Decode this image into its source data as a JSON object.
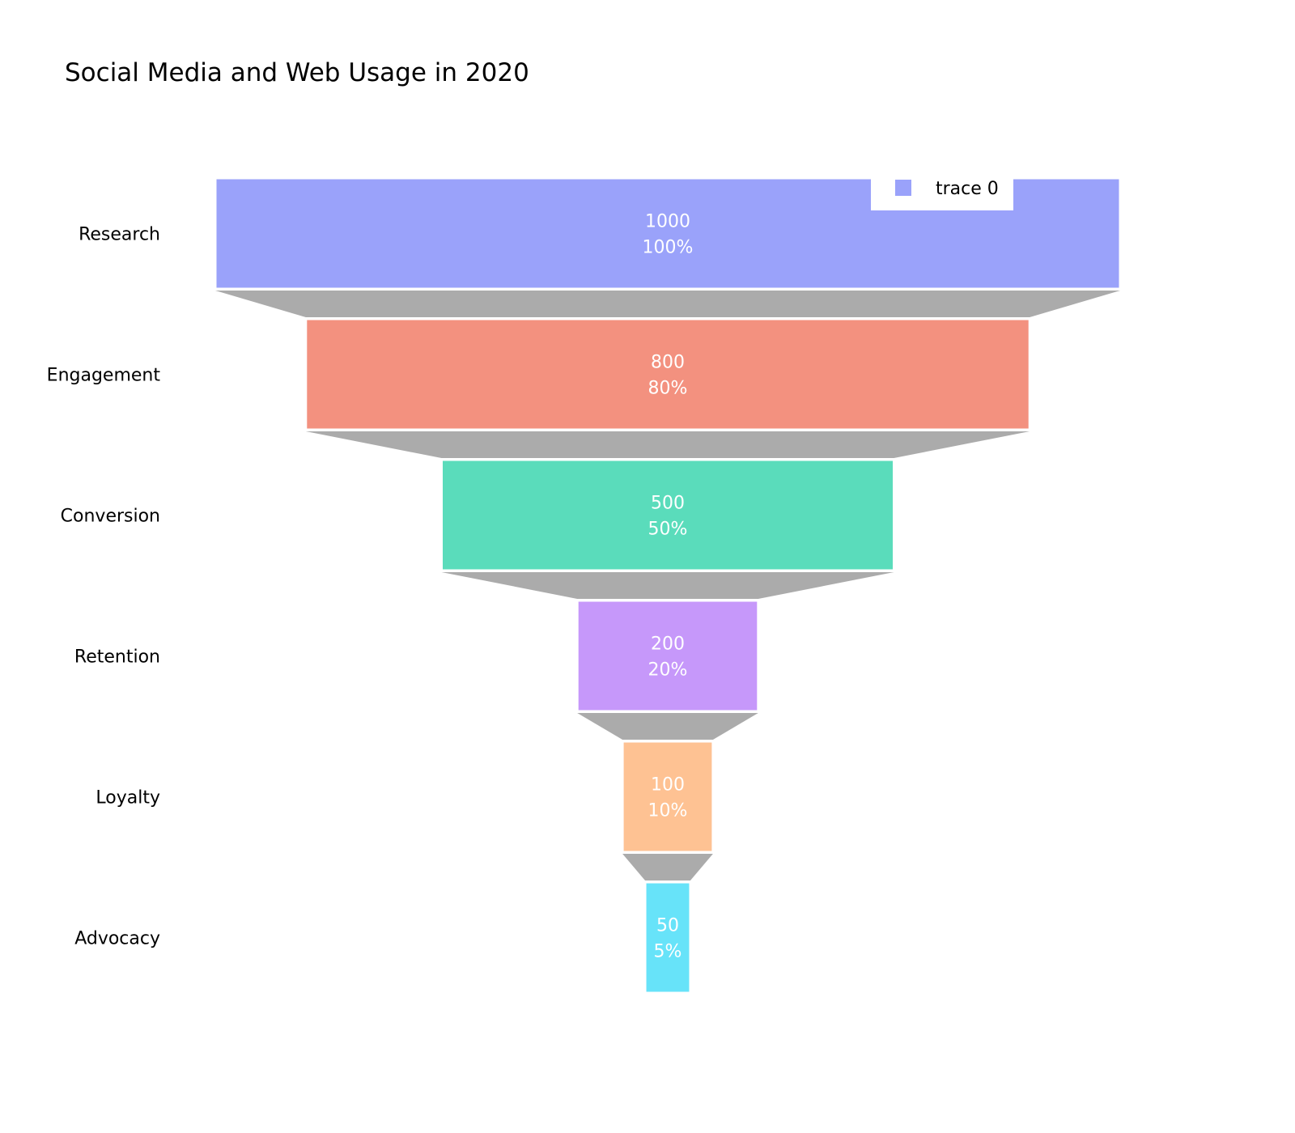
{
  "chart_data": {
    "type": "funnel",
    "title": "Social Media and Web Usage in 2020",
    "categories": [
      "Research",
      "Engagement",
      "Conversion",
      "Retention",
      "Loyalty",
      "Advocacy"
    ],
    "series": [
      {
        "name": "trace 0",
        "values": [
          1000,
          800,
          500,
          200,
          100,
          50
        ],
        "percent_labels": [
          "100%",
          "80%",
          "50%",
          "20%",
          "10%",
          "5%"
        ]
      }
    ],
    "colors": [
      "#9aa2fa",
      "#f3917f",
      "#5adcbb",
      "#c698fa",
      "#fec293",
      "#67e3f9"
    ],
    "connector_color": "#ababab",
    "legend": {
      "position": "top-right",
      "entries": [
        "trace 0"
      ],
      "swatch_color": "#9aa2fa"
    }
  }
}
